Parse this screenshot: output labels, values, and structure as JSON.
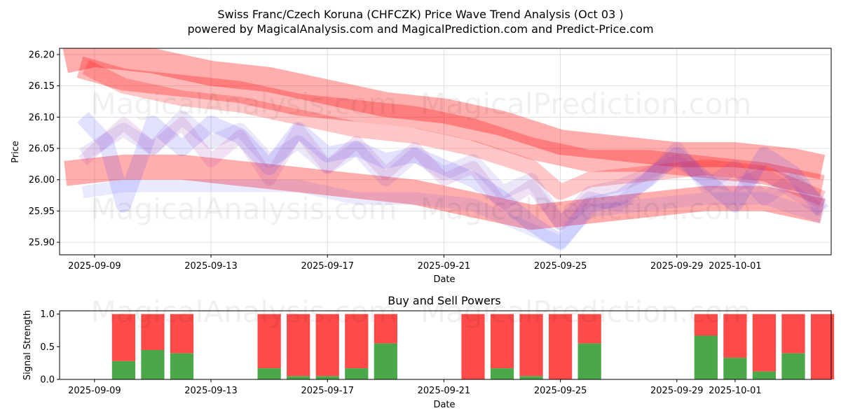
{
  "figure": {
    "title_line1": "Swiss Franc/Czech Koruna (CHFCZK) Price Wave Trend Analysis (Oct 03 )",
    "title_line2": "powered by MagicalAnalysis.com and MagicalPrediction.com and Predict-Price.com",
    "watermarks": [
      "MagicalAnalysis.com",
      "MagicalPrediction.com",
      "MagicalAnalysis.com",
      "MagicalPrediction.com",
      "MagicalAnalysis.com",
      "MagicalPrediction.com"
    ]
  },
  "chart_data": [
    {
      "type": "area",
      "title": "",
      "xlabel": "Date",
      "ylabel": "Price",
      "xlim_day": [
        -1.2,
        25.3
      ],
      "ylim": [
        25.88,
        26.21
      ],
      "x_ticks": [
        {
          "label": "2025-09-09",
          "day": 0
        },
        {
          "label": "2025-09-13",
          "day": 4
        },
        {
          "label": "2025-09-17",
          "day": 8
        },
        {
          "label": "2025-09-21",
          "day": 12
        },
        {
          "label": "2025-09-25",
          "day": 16
        },
        {
          "label": "2025-09-29",
          "day": 20
        },
        {
          "label": "2025-10-01",
          "day": 22
        }
      ],
      "y_ticks": [
        "25.90",
        "25.95",
        "26.00",
        "26.05",
        "26.10",
        "26.15",
        "26.20"
      ],
      "grid": true,
      "series": [
        {
          "name": "red-band-upper",
          "color": "#ff0000",
          "opacity": 0.32,
          "width_price": 0.04,
          "days": [
            -1,
            0,
            2,
            4,
            6,
            8,
            10,
            12,
            14,
            16,
            18,
            20,
            22,
            24,
            25
          ],
          "values": [
            26.19,
            26.2,
            26.19,
            26.17,
            26.16,
            26.14,
            26.12,
            26.11,
            26.09,
            26.06,
            26.05,
            26.04,
            26.04,
            26.03,
            26.02
          ]
        },
        {
          "name": "red-band-upper-2",
          "color": "#ff0000",
          "opacity": 0.28,
          "width_price": 0.035,
          "days": [
            -0.5,
            1,
            3,
            5,
            7,
            9,
            11,
            13,
            15,
            17,
            19,
            21,
            23,
            25
          ],
          "values": [
            26.18,
            26.16,
            26.15,
            26.14,
            26.12,
            26.11,
            26.1,
            26.08,
            26.05,
            26.03,
            26.03,
            26.02,
            26.01,
            25.99
          ]
        },
        {
          "name": "red-band-mid",
          "color": "#ff0000",
          "opacity": 0.22,
          "width_price": 0.025,
          "days": [
            -0.3,
            1,
            3,
            5,
            7,
            9,
            11,
            13,
            15,
            16,
            17,
            19,
            21,
            23,
            25
          ],
          "values": [
            26.18,
            26.15,
            26.13,
            26.12,
            26.1,
            26.08,
            26.07,
            26.05,
            26.02,
            25.98,
            26.0,
            26.01,
            26.02,
            26.01,
            25.97
          ]
        },
        {
          "name": "red-band-lower",
          "color": "#ff0000",
          "opacity": 0.32,
          "width_price": 0.04,
          "days": [
            -1,
            1,
            3,
            5,
            7,
            9,
            11,
            13,
            15,
            17,
            19,
            21,
            23,
            25
          ],
          "values": [
            26.01,
            26.02,
            26.02,
            26.01,
            26.0,
            25.99,
            25.98,
            25.96,
            25.94,
            25.95,
            25.96,
            25.97,
            25.97,
            25.95
          ]
        },
        {
          "name": "blue-wave-1",
          "color": "#3333ff",
          "opacity": 0.14,
          "width_price": 0.025,
          "days": [
            -0.4,
            0.4,
            1,
            2,
            3,
            4,
            5,
            6,
            7,
            8,
            9,
            10,
            11,
            12,
            13,
            14,
            15,
            16,
            17,
            18,
            19,
            20,
            21,
            22,
            23,
            24,
            25
          ],
          "values": [
            26.1,
            26.06,
            25.96,
            26.09,
            26.05,
            26.09,
            26.07,
            26.02,
            26.08,
            26.04,
            26.05,
            26.03,
            26.04,
            26.02,
            26.0,
            25.97,
            25.93,
            25.9,
            25.96,
            25.97,
            26.0,
            26.04,
            26.0,
            25.96,
            26.04,
            26.01,
            25.95
          ]
        },
        {
          "name": "blue-wave-2",
          "color": "#6633cc",
          "opacity": 0.12,
          "width_price": 0.022,
          "days": [
            -0.4,
            1,
            2,
            3,
            4,
            5,
            6,
            7,
            8,
            9,
            10,
            11,
            12,
            13,
            14,
            15,
            16,
            17,
            18,
            19,
            20,
            21,
            22,
            23,
            24,
            25
          ],
          "values": [
            26.04,
            26.08,
            26.05,
            26.1,
            26.06,
            26.08,
            26.03,
            26.06,
            26.02,
            26.05,
            26.0,
            26.04,
            26.01,
            26.03,
            25.98,
            26.0,
            25.93,
            25.97,
            25.96,
            26.0,
            26.05,
            25.99,
            26.02,
            25.97,
            26.0,
            25.96
          ]
        },
        {
          "name": "blue-wave-3",
          "color": "#3333ff",
          "opacity": 0.1,
          "width_price": 0.02,
          "days": [
            -0.4,
            1,
            3,
            5,
            7,
            8,
            9,
            11,
            13,
            15,
            16,
            17,
            19,
            21,
            23,
            25
          ],
          "values": [
            25.98,
            25.99,
            25.99,
            25.99,
            25.99,
            25.98,
            25.97,
            25.97,
            25.96,
            25.92,
            25.9,
            25.95,
            25.96,
            25.97,
            25.97,
            25.94
          ]
        },
        {
          "name": "purple-mix",
          "color": "#9933aa",
          "opacity": 0.14,
          "width_price": 0.02,
          "days": [
            -0.4,
            1,
            2,
            3,
            4,
            5,
            6,
            7,
            8,
            9,
            10,
            11,
            12,
            13,
            14,
            15,
            16,
            17,
            18,
            19,
            20,
            21,
            22,
            23,
            24,
            25
          ],
          "values": [
            26.03,
            26.09,
            26.05,
            26.09,
            26.03,
            26.07,
            26.0,
            26.08,
            26.02,
            26.06,
            26.01,
            26.05,
            26.0,
            26.02,
            25.96,
            25.99,
            25.93,
            25.98,
            25.99,
            26.01,
            26.03,
            26.0,
            25.99,
            26.01,
            25.98,
            25.95
          ]
        }
      ]
    },
    {
      "type": "bar",
      "title": "Buy and Sell Powers",
      "xlabel": "Date",
      "ylabel": "Signal Strength",
      "xlim_day": [
        -1.2,
        25.3
      ],
      "ylim": [
        0,
        1.05
      ],
      "y_ticks": [
        "0.0",
        "0.5",
        "1.0"
      ],
      "x_ticks": [
        {
          "label": "2025-09-09",
          "day": 0
        },
        {
          "label": "2025-09-13",
          "day": 4
        },
        {
          "label": "2025-09-17",
          "day": 8
        },
        {
          "label": "2025-09-21",
          "day": 12
        },
        {
          "label": "2025-09-25",
          "day": 16
        },
        {
          "label": "2025-09-29",
          "day": 20
        },
        {
          "label": "2025-10-01",
          "day": 22
        }
      ],
      "buy_color": "#4aa84a",
      "sell_color": "#ff4a4a",
      "bars": [
        {
          "day": 1,
          "buy": 0.28
        },
        {
          "day": 2,
          "buy": 0.45
        },
        {
          "day": 3,
          "buy": 0.4
        },
        {
          "day": 6,
          "buy": 0.17
        },
        {
          "day": 7,
          "buy": 0.05
        },
        {
          "day": 8,
          "buy": 0.05
        },
        {
          "day": 9,
          "buy": 0.17
        },
        {
          "day": 10,
          "buy": 0.55
        },
        {
          "day": 13,
          "buy": 0.0
        },
        {
          "day": 14,
          "buy": 0.17
        },
        {
          "day": 15,
          "buy": 0.05
        },
        {
          "day": 16,
          "buy": 0.0
        },
        {
          "day": 17,
          "buy": 0.55
        },
        {
          "day": 21,
          "buy": 0.67
        },
        {
          "day": 22,
          "buy": 0.33
        },
        {
          "day": 23,
          "buy": 0.12
        },
        {
          "day": 24,
          "buy": 0.4
        },
        {
          "day": 25,
          "buy": 0.0
        }
      ]
    }
  ]
}
